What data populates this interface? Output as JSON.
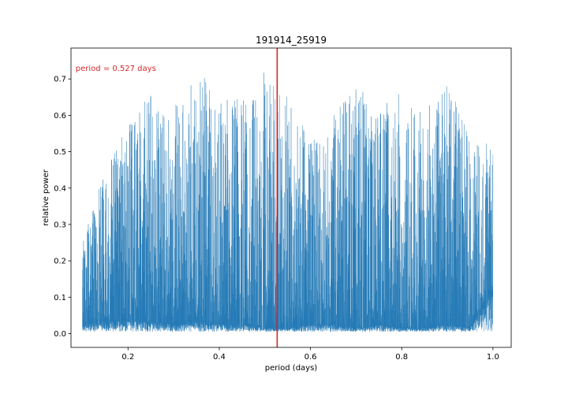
{
  "chart_data": {
    "type": "line",
    "title": "191914_25919",
    "xlabel": "period (days)",
    "ylabel": "relative power",
    "xlim": [
      0.075,
      1.04
    ],
    "ylim": [
      -0.038,
      0.785
    ],
    "xticks": [
      0.2,
      0.4,
      0.6,
      0.8,
      1.0
    ],
    "xtick_labels": [
      "0.2",
      "0.4",
      "0.6",
      "0.8",
      "1.0"
    ],
    "yticks": [
      0.0,
      0.1,
      0.2,
      0.3,
      0.4,
      0.5,
      0.6,
      0.7
    ],
    "ytick_labels": [
      "0.0",
      "0.1",
      "0.2",
      "0.3",
      "0.4",
      "0.5",
      "0.6",
      "0.7"
    ],
    "grid": false,
    "series": [
      {
        "color": "#1f77b4",
        "x_range": [
          0.1,
          1.0
        ],
        "envelope": {
          "x": [
            0.1,
            0.15,
            0.2,
            0.25,
            0.3,
            0.35,
            0.4,
            0.45,
            0.5,
            0.55,
            0.6,
            0.65,
            0.7,
            0.75,
            0.8,
            0.85,
            0.9,
            0.95,
            1.0
          ],
          "peak": [
            0.26,
            0.45,
            0.58,
            0.66,
            0.62,
            0.73,
            0.66,
            0.64,
            0.74,
            0.66,
            0.55,
            0.6,
            0.68,
            0.63,
            0.68,
            0.61,
            0.69,
            0.55,
            0.52
          ],
          "floor": [
            0.02,
            0.03,
            0.03,
            0.03,
            0.02,
            0.03,
            0.02,
            0.02,
            0.01,
            0.01,
            0.02,
            0.02,
            0.01,
            0.02,
            0.01,
            0.01,
            0.02,
            0.01,
            0.12
          ]
        }
      }
    ],
    "best_period_line": {
      "x": 0.527,
      "color": "#d62728"
    },
    "annotation": {
      "text": "period = 0.527 days",
      "color": "#d62728",
      "x": 0.085,
      "y": 0.73
    }
  }
}
